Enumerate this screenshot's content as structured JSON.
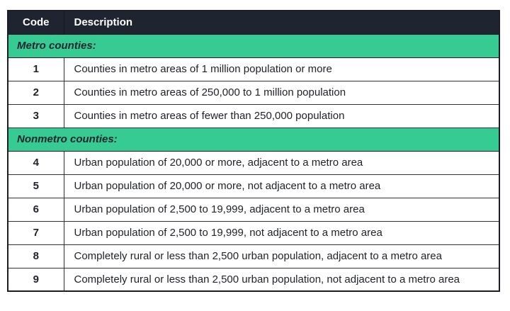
{
  "table": {
    "headers": [
      {
        "label": "Code"
      },
      {
        "label": "Description"
      }
    ],
    "rows": [
      {
        "type": "section",
        "label": "Metro counties:"
      },
      {
        "type": "data",
        "code": "1",
        "description": "Counties in metro areas of 1 million population or more"
      },
      {
        "type": "data",
        "code": "2",
        "description": "Counties in metro areas of 250,000 to 1 million population"
      },
      {
        "type": "data",
        "code": "3",
        "description": "Counties in metro areas of fewer than 250,000 population"
      },
      {
        "type": "section",
        "label": "Nonmetro counties:"
      },
      {
        "type": "data",
        "code": "4",
        "description": "Urban population of 20,000 or more, adjacent to a metro area"
      },
      {
        "type": "data",
        "code": "5",
        "description": "Urban population of 20,000 or more, not adjacent to a metro area"
      },
      {
        "type": "data",
        "code": "6",
        "description": "Urban population of 2,500 to 19,999, adjacent to a metro area"
      },
      {
        "type": "data",
        "code": "7",
        "description": "Urban population of 2,500 to 19,999, not adjacent to a metro area"
      },
      {
        "type": "data",
        "code": "8",
        "description": "Completely rural or less than 2,500 urban population, adjacent to a metro area"
      },
      {
        "type": "data",
        "code": "9",
        "description": "Completely rural or less than 2,500 urban population, not adjacent to a metro area"
      }
    ]
  },
  "colors": {
    "header_bg": "#1f2530",
    "header_text": "#ffffff",
    "section_bg": "#35cb92",
    "section_text": "#1f2530",
    "body_text": "#202328",
    "border": "#1b1e24"
  }
}
